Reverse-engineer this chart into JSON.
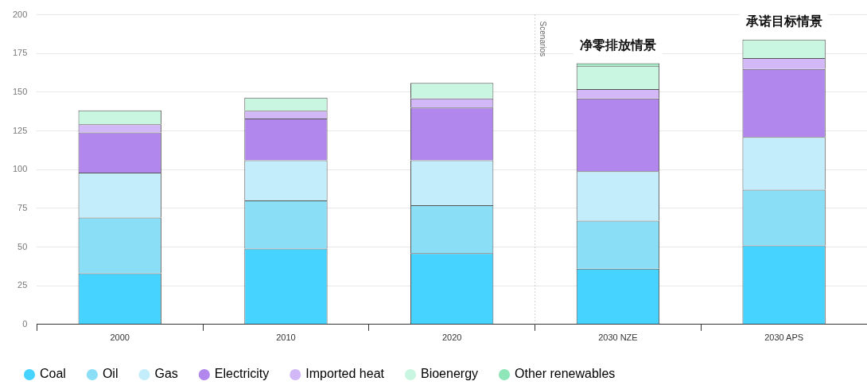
{
  "chart_data": {
    "type": "bar",
    "stacked": true,
    "categories": [
      "2000",
      "2010",
      "2020",
      "2030 NZE",
      "2030 APS"
    ],
    "series": [
      {
        "name": "Coal",
        "color": "#47d3ff",
        "values": [
          33,
          49,
          46,
          36,
          51
        ]
      },
      {
        "name": "Oil",
        "color": "#8adff7",
        "values": [
          36,
          31,
          31,
          31,
          36
        ]
      },
      {
        "name": "Gas",
        "color": "#c4edfb",
        "values": [
          29,
          26,
          29,
          32,
          34
        ]
      },
      {
        "name": "Electricity",
        "color": "#b187ee",
        "values": [
          26,
          27,
          34,
          47,
          44
        ]
      },
      {
        "name": "Imported heat",
        "color": "#d3b8f7",
        "values": [
          5.3,
          5,
          6,
          6,
          7
        ]
      },
      {
        "name": "Bioenergy",
        "color": "#c9f6e1",
        "values": [
          9,
          8.5,
          10,
          15,
          12
        ]
      },
      {
        "name": "Other renewables",
        "color": "#8ee6b9",
        "values": [
          null,
          null,
          null,
          1.7,
          null
        ]
      }
    ],
    "ylim": [
      0,
      200
    ],
    "yticks": [
      0,
      25,
      50,
      75,
      100,
      125,
      150,
      175,
      200
    ],
    "grid": "y",
    "legend": "bottom",
    "marker": "circle",
    "ref_lines": [
      {
        "axis": "x",
        "value": "2030 NZE",
        "label": "Scenarios",
        "line_style": "dotted",
        "color": "#aaaaaa"
      }
    ],
    "annotations": [
      "净零排放情景",
      "承诺目标情景"
    ]
  }
}
